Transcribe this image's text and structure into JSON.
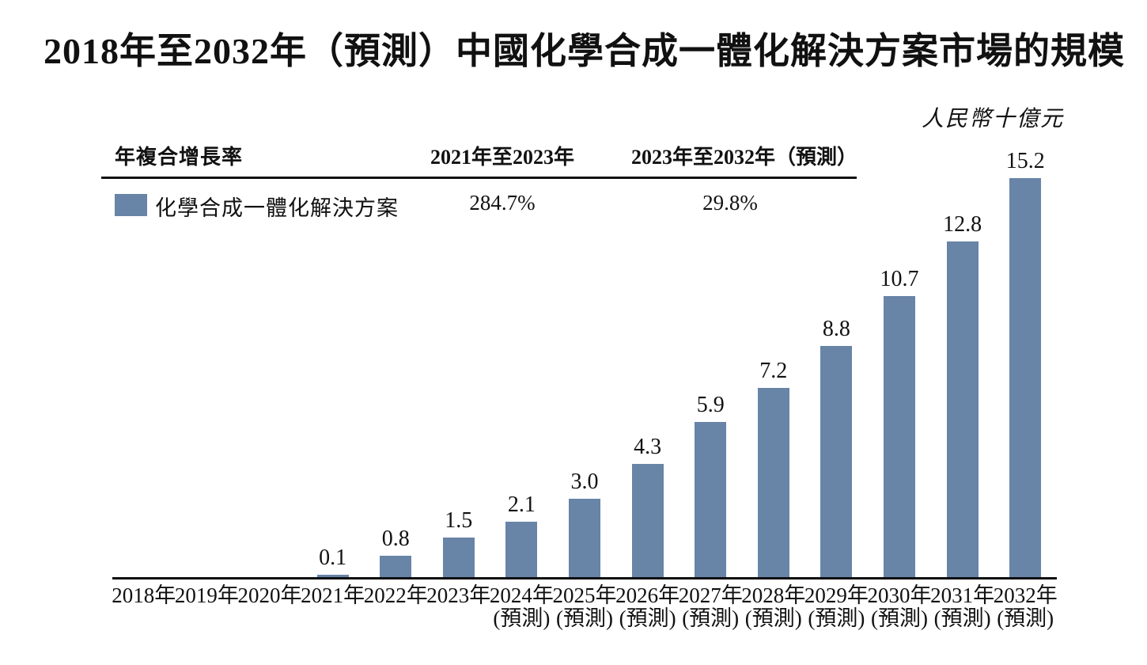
{
  "title": "2018年至2032年（預測）中國化學合成一體化解決方案市場的規模",
  "unit_label": "人民幣十億元",
  "cagr_table": {
    "headers": [
      "年複合增長率",
      "2021年至2023年",
      "2023年至2032年（預測）"
    ],
    "row": {
      "legend_label": "化學合成一體化解決方案",
      "cagr_2021_2023": "284.7%",
      "cagr_2023_2032": "29.8%"
    }
  },
  "colors": {
    "bar": "#6884a7",
    "text": "#111111",
    "axis": "#0d0d0d"
  },
  "chart_data": {
    "type": "bar",
    "title": "2018年至2032年（預測）中國化學合成一體化解決方案市場的規模",
    "ylabel": "人民幣十億元",
    "xlabel": "",
    "ylim": [
      0,
      15.2
    ],
    "grid": false,
    "legend_position": "top-left",
    "series_name": "化學合成一體化解決方案",
    "categories": [
      {
        "year": "2018年",
        "sub": ""
      },
      {
        "year": "2019年",
        "sub": ""
      },
      {
        "year": "2020年",
        "sub": ""
      },
      {
        "year": "2021年",
        "sub": ""
      },
      {
        "year": "2022年",
        "sub": ""
      },
      {
        "year": "2023年",
        "sub": ""
      },
      {
        "year": "2024年",
        "sub": "(預測)"
      },
      {
        "year": "2025年",
        "sub": "(預測)"
      },
      {
        "year": "2026年",
        "sub": "(預測)"
      },
      {
        "year": "2027年",
        "sub": "(預測)"
      },
      {
        "year": "2028年",
        "sub": "(預測)"
      },
      {
        "year": "2029年",
        "sub": "(預測)"
      },
      {
        "year": "2030年",
        "sub": "(預測)"
      },
      {
        "year": "2031年",
        "sub": "(預測)"
      },
      {
        "year": "2032年",
        "sub": "(預測)"
      }
    ],
    "values": [
      0,
      0,
      0,
      0.1,
      0.8,
      1.5,
      2.1,
      3.0,
      4.3,
      5.9,
      7.2,
      8.8,
      10.7,
      12.8,
      15.2
    ],
    "value_labels": [
      "",
      "",
      "",
      "0.1",
      "0.8",
      "1.5",
      "2.1",
      "3.0",
      "4.3",
      "5.9",
      "7.2",
      "8.8",
      "10.7",
      "12.8",
      "15.2"
    ]
  }
}
